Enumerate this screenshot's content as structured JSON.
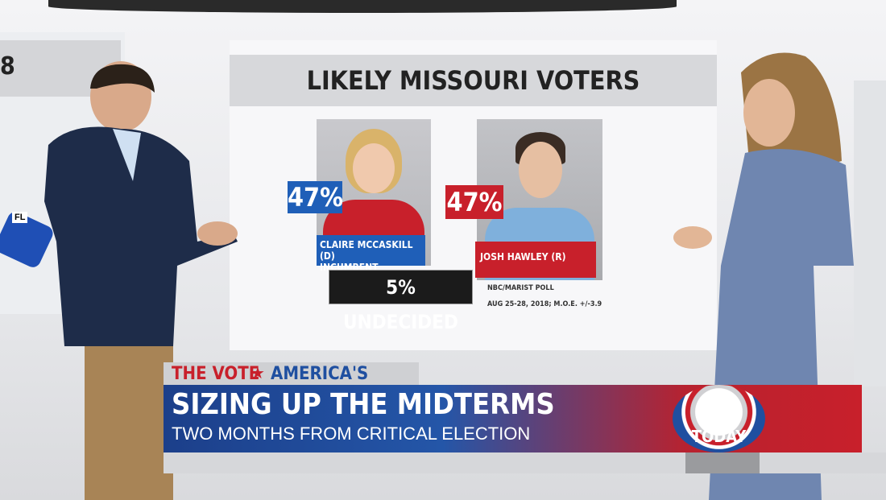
{
  "wall": {
    "left_panel_text": "8",
    "map_label": "FL"
  },
  "board": {
    "title": "LIKELY MISSOURI VOTERS",
    "candidates": [
      {
        "percent": "47%",
        "name": "CLAIRE MCCASKILL (D)",
        "note": "INCUMBENT"
      },
      {
        "percent": "47%",
        "name": "JOSH HAWLEY (R)"
      }
    ],
    "undecided": "5% UNDECIDED",
    "source": "NBC/MARIST POLL",
    "source_detail": "AUG 25-28, 2018; M.O.E. +/-3.9"
  },
  "lower_third": {
    "tag_left": "THE VOTE",
    "tag_right": "AMERICA'S FUTURE",
    "headline": "SIZING UP THE MIDTERMS",
    "subhead": "TWO MONTHS FROM CRITICAL ELECTION",
    "logo": "TODAY"
  }
}
